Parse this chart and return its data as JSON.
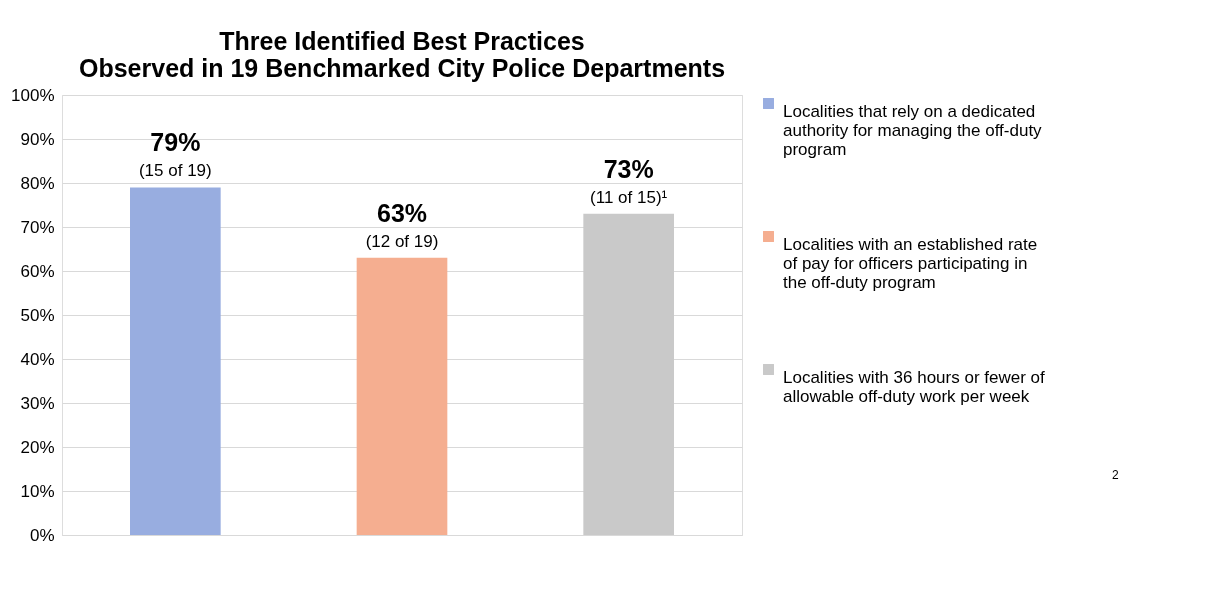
{
  "chart_data": {
    "type": "bar",
    "title": "Three Identified Best Practices\nObserved in 19 Benchmarked City Police Departments",
    "categories": [
      null,
      null,
      null
    ],
    "series": [
      {
        "name": "Localities that rely on a dedicated authority for managing the off-duty program",
        "color": "#98ade0",
        "values": [
          79,
          null,
          null
        ],
        "value_labels": [
          "79%",
          null,
          null
        ]
      },
      {
        "name": "Localities with an established rate of pay for officers participating in the off-duty program",
        "color": "#f5ae90",
        "values": [
          null,
          63,
          null
        ],
        "value_labels": [
          null,
          "63%",
          null
        ]
      },
      {
        "name": "Localities with 36 hours or fewer of allowable off-duty work per week",
        "color": "#c9c9c9",
        "values": [
          null,
          null,
          73
        ],
        "value_labels": [
          null,
          null,
          "73%"
        ]
      }
    ],
    "annotations": [
      {
        "text": "(15 of 19)",
        "y": 79
      },
      {
        "text": "(12 of 19)",
        "y": 63
      },
      {
        "text": "(11 of 15)¹",
        "y": 73
      },
      "2"
    ],
    "ylim": [
      0,
      100
    ],
    "yticks": [
      {
        "value": 0,
        "label": "0%"
      },
      {
        "value": 10,
        "label": "10%"
      },
      {
        "value": 20,
        "label": "20%"
      },
      {
        "value": 30,
        "label": "30%"
      },
      {
        "value": 40,
        "label": "40%"
      },
      {
        "value": 50,
        "label": "50%"
      },
      {
        "value": 60,
        "label": "60%"
      },
      {
        "value": 70,
        "label": "70%"
      },
      {
        "value": 80,
        "label": "80%"
      },
      {
        "value": 90,
        "label": "90%"
      },
      {
        "value": 100,
        "label": "100%"
      }
    ],
    "grid": "y",
    "legend": "right"
  }
}
